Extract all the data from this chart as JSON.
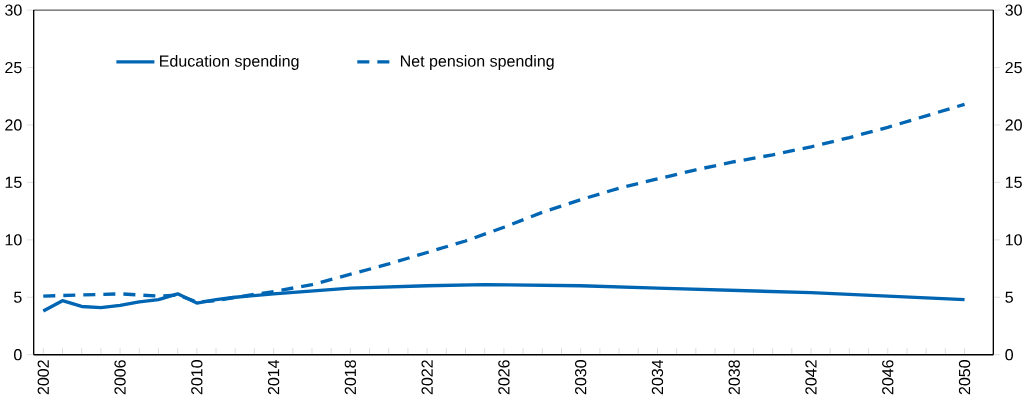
{
  "chart_data": {
    "type": "line",
    "legend": "top left",
    "grid": false,
    "marker": "none",
    "xlim": [
      2001.5,
      2051.5
    ],
    "xticks": [
      2002,
      {
        "value": 2003,
        "label": null
      },
      {
        "value": 2004,
        "label": null
      },
      {
        "value": 2005,
        "label": null
      },
      2006,
      {
        "value": 2007,
        "label": null
      },
      {
        "value": 2008,
        "label": null
      },
      {
        "value": 2009,
        "label": null
      },
      2010,
      {
        "value": 2011,
        "label": null
      },
      {
        "value": 2012,
        "label": null
      },
      {
        "value": 2013,
        "label": null
      },
      2014,
      {
        "value": 2015,
        "label": null
      },
      {
        "value": 2016,
        "label": null
      },
      {
        "value": 2017,
        "label": null
      },
      2018,
      {
        "value": 2019,
        "label": null
      },
      {
        "value": 2020,
        "label": null
      },
      {
        "value": 2021,
        "label": null
      },
      2022,
      {
        "value": 2023,
        "label": null
      },
      {
        "value": 2024,
        "label": null
      },
      {
        "value": 2025,
        "label": null
      },
      2026,
      {
        "value": 2027,
        "label": null
      },
      {
        "value": 2028,
        "label": null
      },
      {
        "value": 2029,
        "label": null
      },
      2030,
      {
        "value": 2031,
        "label": null
      },
      {
        "value": 2032,
        "label": null
      },
      {
        "value": 2033,
        "label": null
      },
      2034,
      {
        "value": 2035,
        "label": null
      },
      {
        "value": 2036,
        "label": null
      },
      {
        "value": 2037,
        "label": null
      },
      2038,
      {
        "value": 2039,
        "label": null
      },
      {
        "value": 2040,
        "label": null
      },
      {
        "value": 2041,
        "label": null
      },
      2042,
      {
        "value": 2043,
        "label": null
      },
      {
        "value": 2044,
        "label": null
      },
      {
        "value": 2045,
        "label": null
      },
      2046,
      {
        "value": 2047,
        "label": null
      },
      {
        "value": 2048,
        "label": null
      },
      {
        "value": 2049,
        "label": null
      },
      2050
    ],
    "ylim": [
      0,
      30
    ],
    "yticks": [
      0,
      5,
      10,
      15,
      20,
      25,
      30
    ],
    "y2lim": [
      0,
      30
    ],
    "y2ticks": [
      0,
      5,
      10,
      15,
      20,
      25,
      30
    ],
    "series": [
      {
        "name": "Education spending",
        "color": "#0066b3",
        "line_style": "solid",
        "x": [
          2002,
          2003,
          2004,
          2005,
          2006,
          2007,
          2008,
          2009,
          2010,
          2011,
          2012,
          2014,
          2018,
          2022,
          2025,
          2030,
          2034,
          2038,
          2042,
          2046,
          2050
        ],
        "values": [
          3.8,
          4.7,
          4.2,
          4.1,
          4.3,
          4.6,
          4.8,
          5.3,
          4.5,
          4.8,
          5.0,
          5.3,
          5.8,
          6.0,
          6.1,
          6.0,
          5.8,
          5.6,
          5.4,
          5.1,
          4.8
        ]
      },
      {
        "name": "Net pension spending",
        "color": "#0066b3",
        "line_style": "dashed",
        "x": [
          2002,
          2004,
          2006,
          2008,
          2009,
          2010,
          2011,
          2012,
          2014,
          2016,
          2018,
          2020,
          2022,
          2024,
          2026,
          2028,
          2030,
          2032,
          2034,
          2036,
          2038,
          2040,
          2042,
          2044,
          2046,
          2048,
          2050
        ],
        "values": [
          5.1,
          5.2,
          5.3,
          5.1,
          5.2,
          4.6,
          4.7,
          5.0,
          5.5,
          6.1,
          7.0,
          7.9,
          8.9,
          9.9,
          11.1,
          12.4,
          13.5,
          14.5,
          15.3,
          16.1,
          16.8,
          17.4,
          18.1,
          18.9,
          19.8,
          20.8,
          21.8
        ]
      }
    ]
  }
}
